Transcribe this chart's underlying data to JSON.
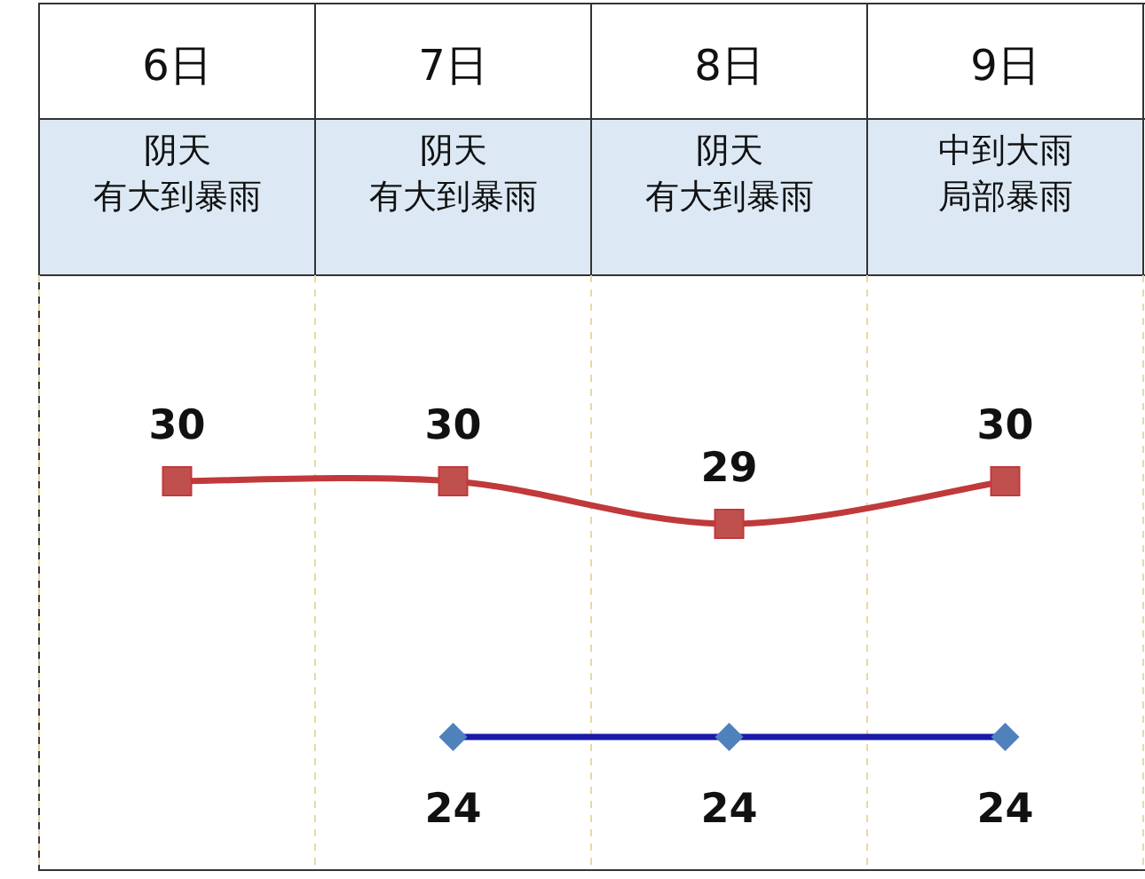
{
  "chart_data": {
    "type": "line",
    "categories": [
      "6日",
      "7日",
      "8日",
      "9日"
    ],
    "annotations": [
      "阴天",
      "有大到暴雨",
      "阴天",
      "有大到暴雨",
      "阴天",
      "有大到暴雨",
      "中到大雨",
      "局部暴雨"
    ],
    "series": [
      {
        "color": "#c0393b",
        "marker": "square",
        "values": [
          30,
          30,
          29,
          30
        ]
      },
      {
        "color": "#1a1aa6",
        "marker": "diamond",
        "values": [
          null,
          24,
          24,
          24
        ]
      }
    ],
    "data_labels": true,
    "grid": "x",
    "line_style": "solid"
  }
}
